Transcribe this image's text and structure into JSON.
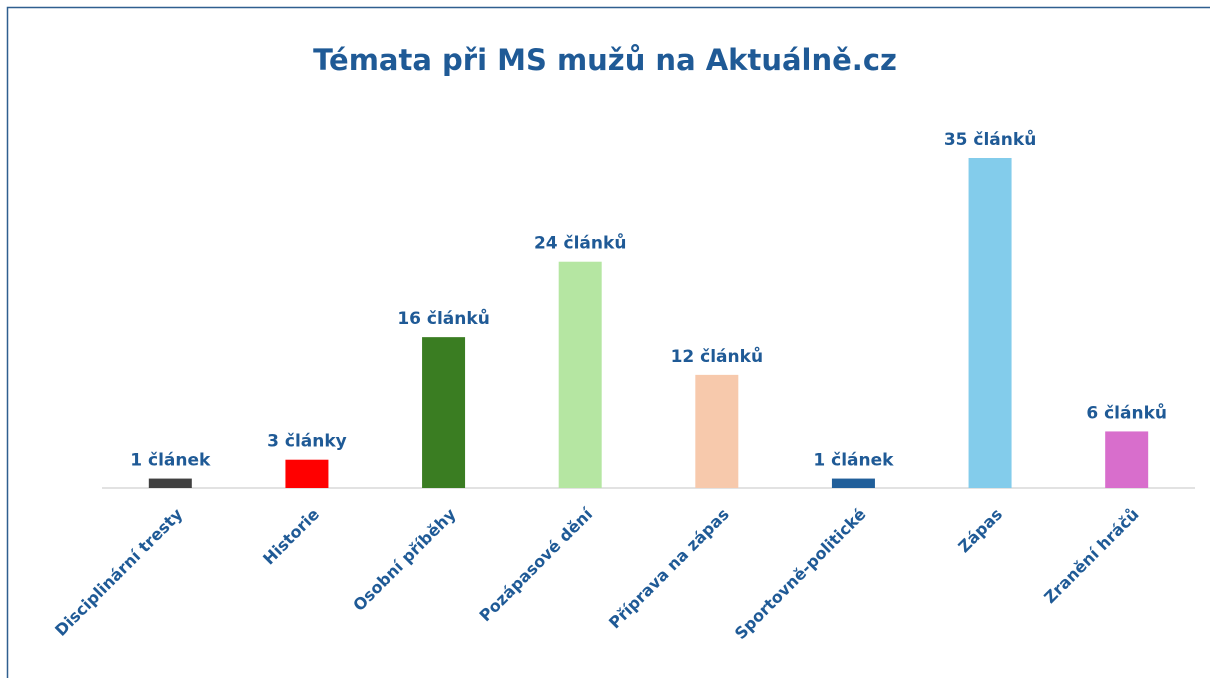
{
  "chart_data": {
    "type": "bar",
    "title": "Témata při MS mužů na Aktuálně.cz",
    "categories": [
      "Disciplinární tresty",
      "Historie",
      "Osobní příběhy",
      "Pozápasové dění",
      "Příprava na zápas",
      "Sportovně-politické",
      "Zápas",
      "Zranění hráčů"
    ],
    "values": [
      1,
      3,
      16,
      24,
      12,
      1,
      35,
      6
    ],
    "value_labels": [
      "1 článek",
      "3 články",
      "16 článků",
      "24 článků",
      "12 článků",
      "1 článek",
      "35 článků",
      "6 článků"
    ],
    "colors": [
      "#404040",
      "#ff0000",
      "#3a7d22",
      "#b5e6a2",
      "#f7c9ac",
      "#215f9a",
      "#83cceb",
      "#d86ecc"
    ]
  }
}
